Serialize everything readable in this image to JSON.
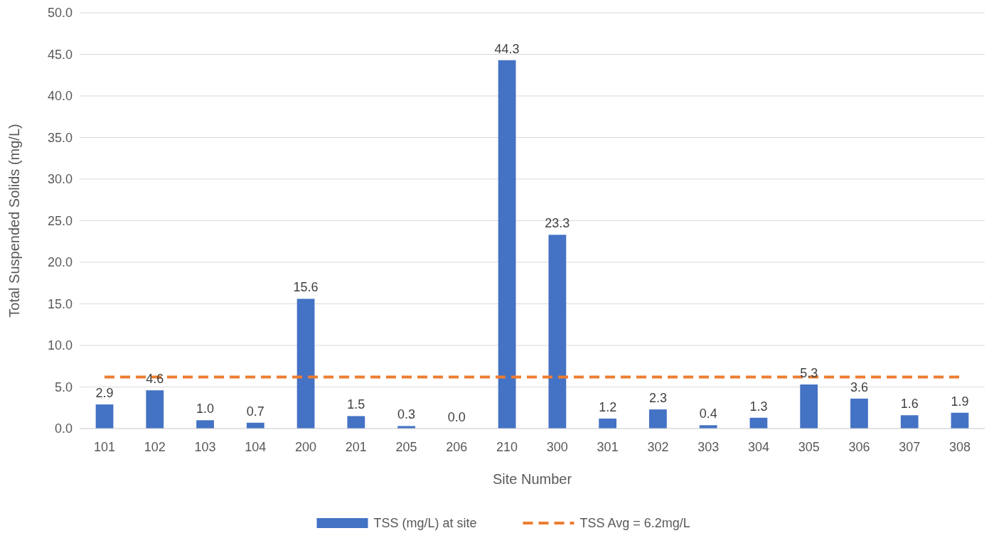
{
  "chart_data": {
    "type": "bar",
    "xlabel": "Site Number",
    "ylabel": "Total Suspended Solids (mg/L)",
    "categories": [
      "101",
      "102",
      "103",
      "104",
      "200",
      "201",
      "205",
      "206",
      "210",
      "300",
      "301",
      "302",
      "303",
      "304",
      "305",
      "306",
      "307",
      "308"
    ],
    "series": [
      {
        "name": "TSS (mg/L) at site",
        "color": "#4472c4",
        "values": [
          2.9,
          4.6,
          1.0,
          0.7,
          15.6,
          1.5,
          0.3,
          0.0,
          44.3,
          23.3,
          1.2,
          2.3,
          0.4,
          1.3,
          5.3,
          3.6,
          1.6,
          1.9
        ],
        "value_labels": [
          "2.9",
          "4.6",
          "1.0",
          "0.7",
          "15.6",
          "1.5",
          "0.3",
          "0.0",
          "44.3",
          "23.3",
          "1.2",
          "2.3",
          "0.4",
          "1.3",
          "5.3",
          "3.6",
          "1.6",
          "1.9"
        ]
      },
      {
        "name": "TSS Avg = 6.2mg/L",
        "type": "line",
        "color": "#ed7d31",
        "line_style": "dashed",
        "marker": "none",
        "values": [
          6.2,
          6.2,
          6.2,
          6.2,
          6.2,
          6.2,
          6.2,
          6.2,
          6.2,
          6.2,
          6.2,
          6.2,
          6.2,
          6.2,
          6.2,
          6.2,
          6.2,
          6.2
        ]
      }
    ],
    "ylim": [
      0,
      50
    ],
    "yticks": [
      {
        "value": 0,
        "label": "0.0"
      },
      {
        "value": 5,
        "label": "5.0"
      },
      {
        "value": 10,
        "label": "10.0"
      },
      {
        "value": 15,
        "label": "15.0"
      },
      {
        "value": 20,
        "label": "20.0"
      },
      {
        "value": 25,
        "label": "25.0"
      },
      {
        "value": 30,
        "label": "30.0"
      },
      {
        "value": 35,
        "label": "35.0"
      },
      {
        "value": 40,
        "label": "40.0"
      },
      {
        "value": 45,
        "label": "45.0"
      },
      {
        "value": 50,
        "label": "50.0"
      }
    ],
    "grid": "y",
    "legend": "bottom"
  }
}
